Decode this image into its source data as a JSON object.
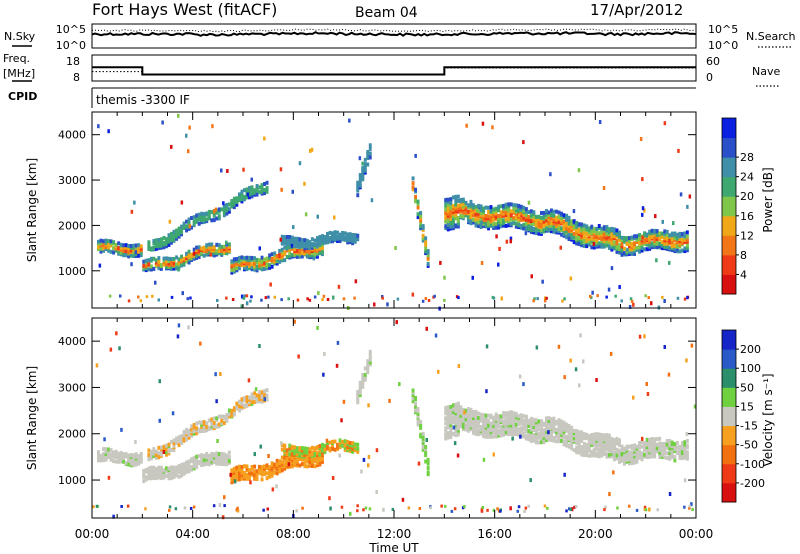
{
  "header": {
    "station": "Fort Hays West (fitACF)",
    "beam": "Beam 04",
    "date": "17/Apr/2012"
  },
  "labels": {
    "nsky": "N.Sky",
    "nsearch": "N.Search",
    "freq_line1": "Freq.",
    "freq_line2": "[MHz]",
    "nave": "Nave",
    "cpid": "CPID",
    "cpid_value": "themis -3300 IF",
    "noise_ticks_left": [
      "10^5",
      "10^0"
    ],
    "noise_ticks_right": [
      "10^5",
      "10^0"
    ],
    "freq_ticks": [
      "18",
      "8"
    ],
    "nave_ticks": [
      "60",
      "0"
    ],
    "power_colorbar_title": "Power [dB]",
    "velocity_colorbar_title": "Velocity [m s⁻¹]"
  },
  "chart_data": [
    {
      "type": "line",
      "name": "noise",
      "series": [
        {
          "name": "N.Sky",
          "values": [
            3.5,
            3.5,
            3.4,
            3.5,
            3.6,
            3.5,
            3.4,
            3.5,
            3.6,
            3.6,
            3.5,
            3.6,
            3.5
          ]
        },
        {
          "name": "N.Search",
          "values": [
            3.6,
            3.6,
            3.5,
            3.6,
            3.7,
            3.6,
            3.5,
            3.6,
            3.7,
            3.7,
            3.6,
            3.7,
            3.6
          ]
        }
      ]
    },
    {
      "type": "line",
      "name": "frequency-and-nave",
      "freq_steps": [
        [
          0,
          13.3
        ],
        [
          2,
          10.3
        ],
        [
          14,
          13.3
        ],
        [
          24,
          13.3
        ]
      ],
      "nave_steps": [
        [
          0,
          21
        ],
        [
          2,
          14
        ],
        [
          14,
          30
        ],
        [
          24,
          30
        ]
      ],
      "freq_ylim": [
        8,
        18
      ],
      "nave_ylim": [
        0,
        60
      ]
    },
    {
      "type": "heatmap",
      "name": "power",
      "xlabel": "",
      "ylabel": "Slant Range [km]",
      "x_ticks": [
        "00:00",
        "04:00",
        "08:00",
        "12:00",
        "16:00",
        "20:00",
        "00:00"
      ],
      "xlim_hours": [
        0,
        24
      ],
      "ylim_km": [
        180,
        4500
      ],
      "y_ticks": [
        1000,
        2000,
        3000,
        4000
      ],
      "colorbar": {
        "ticks": [
          4,
          8,
          12,
          16,
          20,
          24,
          28
        ],
        "colors": [
          "#0b1fe0",
          "#2a4fc8",
          "#3f8fa8",
          "#3fa870",
          "#7fc64a",
          "#f0a818",
          "#f27618",
          "#ef3a18",
          "#d81010"
        ]
      },
      "bands": [
        {
          "t0": 0.2,
          "t1": 2.0,
          "r0": 1500,
          "r1": 1500,
          "w": 260
        },
        {
          "t0": 2.0,
          "t1": 5.5,
          "r0": 1050,
          "r1": 1550,
          "w": 260
        },
        {
          "t0": 2.2,
          "t1": 7.0,
          "r0": 1500,
          "r1": 2900,
          "w": 240
        },
        {
          "t0": 5.5,
          "t1": 9.2,
          "r0": 1050,
          "r1": 1550,
          "w": 300
        },
        {
          "t0": 7.5,
          "t1": 10.6,
          "r0": 1600,
          "r1": 1750,
          "w": 220
        },
        {
          "t0": 10.5,
          "t1": 11.1,
          "r0": 2800,
          "r1": 3700,
          "w": 320
        },
        {
          "t0": 12.7,
          "t1": 13.4,
          "r0": 3000,
          "r1": 1100,
          "w": 380
        },
        {
          "t0": 14.0,
          "t1": 14.6,
          "r0": 2300,
          "r1": 2300,
          "w": 700
        },
        {
          "t0": 14.6,
          "t1": 18.0,
          "r0": 2300,
          "r1": 2100,
          "w": 500
        },
        {
          "t0": 18.0,
          "t1": 21.0,
          "r0": 2100,
          "r1": 1600,
          "w": 500
        },
        {
          "t0": 21.0,
          "t1": 23.7,
          "r0": 1600,
          "r1": 1700,
          "w": 420
        }
      ]
    },
    {
      "type": "heatmap",
      "name": "velocity",
      "xlabel": "Time UT",
      "ylabel": "Slant Range [km]",
      "x_ticks": [
        "00:00",
        "04:00",
        "08:00",
        "12:00",
        "16:00",
        "20:00",
        "00:00"
      ],
      "xlim_hours": [
        0,
        24
      ],
      "ylim_km": [
        180,
        4500
      ],
      "y_ticks": [
        1000,
        2000,
        3000,
        4000
      ],
      "colorbar": {
        "ticks": [
          "200",
          "100",
          "50",
          "15",
          "-15",
          "-50",
          "-100",
          "-200"
        ],
        "colors": [
          "#1525c8",
          "#2a5ac8",
          "#2a8f6a",
          "#6fd040",
          "#c8c8c0",
          "#f7a020",
          "#f27010",
          "#ef3a18",
          "#d81010"
        ]
      }
    }
  ]
}
